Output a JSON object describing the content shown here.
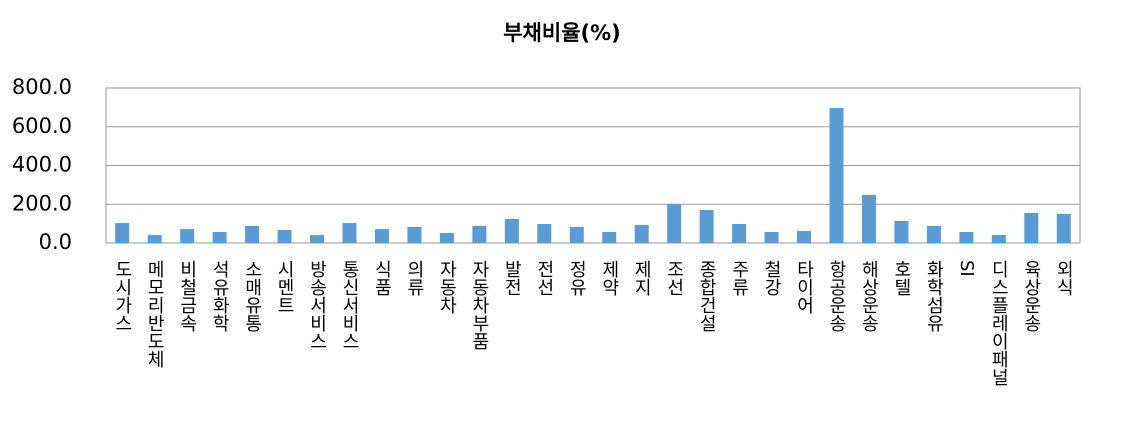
{
  "chart_data": {
    "type": "bar",
    "title": "부채비율(%)",
    "categories": [
      "도시가스",
      "메모리반도체",
      "비철금속",
      "석유화학",
      "소매유통",
      "시멘트",
      "방송서비스",
      "통신서비스",
      "식품",
      "의류",
      "자동차",
      "자동차부품",
      "발전",
      "전선",
      "정유",
      "제약",
      "제지",
      "조선",
      "종합건설",
      "주류",
      "철강",
      "타이어",
      "항공운송",
      "해상운송",
      "호텔",
      "화학섬유",
      "SI",
      "디스플레이패널",
      "육상운송",
      "외식"
    ],
    "values": [
      103,
      41,
      72,
      57,
      88,
      67,
      41,
      103,
      72,
      83,
      52,
      88,
      124,
      98,
      83,
      57,
      93,
      201,
      170,
      98,
      57,
      62,
      697,
      248,
      114,
      88,
      57,
      41,
      155,
      150
    ],
    "color": "#5b9bd5",
    "ylim": [
      0,
      800
    ],
    "yticks": [
      {
        "value": 0,
        "label": "0.0"
      },
      {
        "value": 200,
        "label": "200.0"
      },
      {
        "value": 400,
        "label": "400.0"
      },
      {
        "value": 600,
        "label": "600.0"
      },
      {
        "value": 800,
        "label": "800.0"
      }
    ],
    "grid": true
  }
}
